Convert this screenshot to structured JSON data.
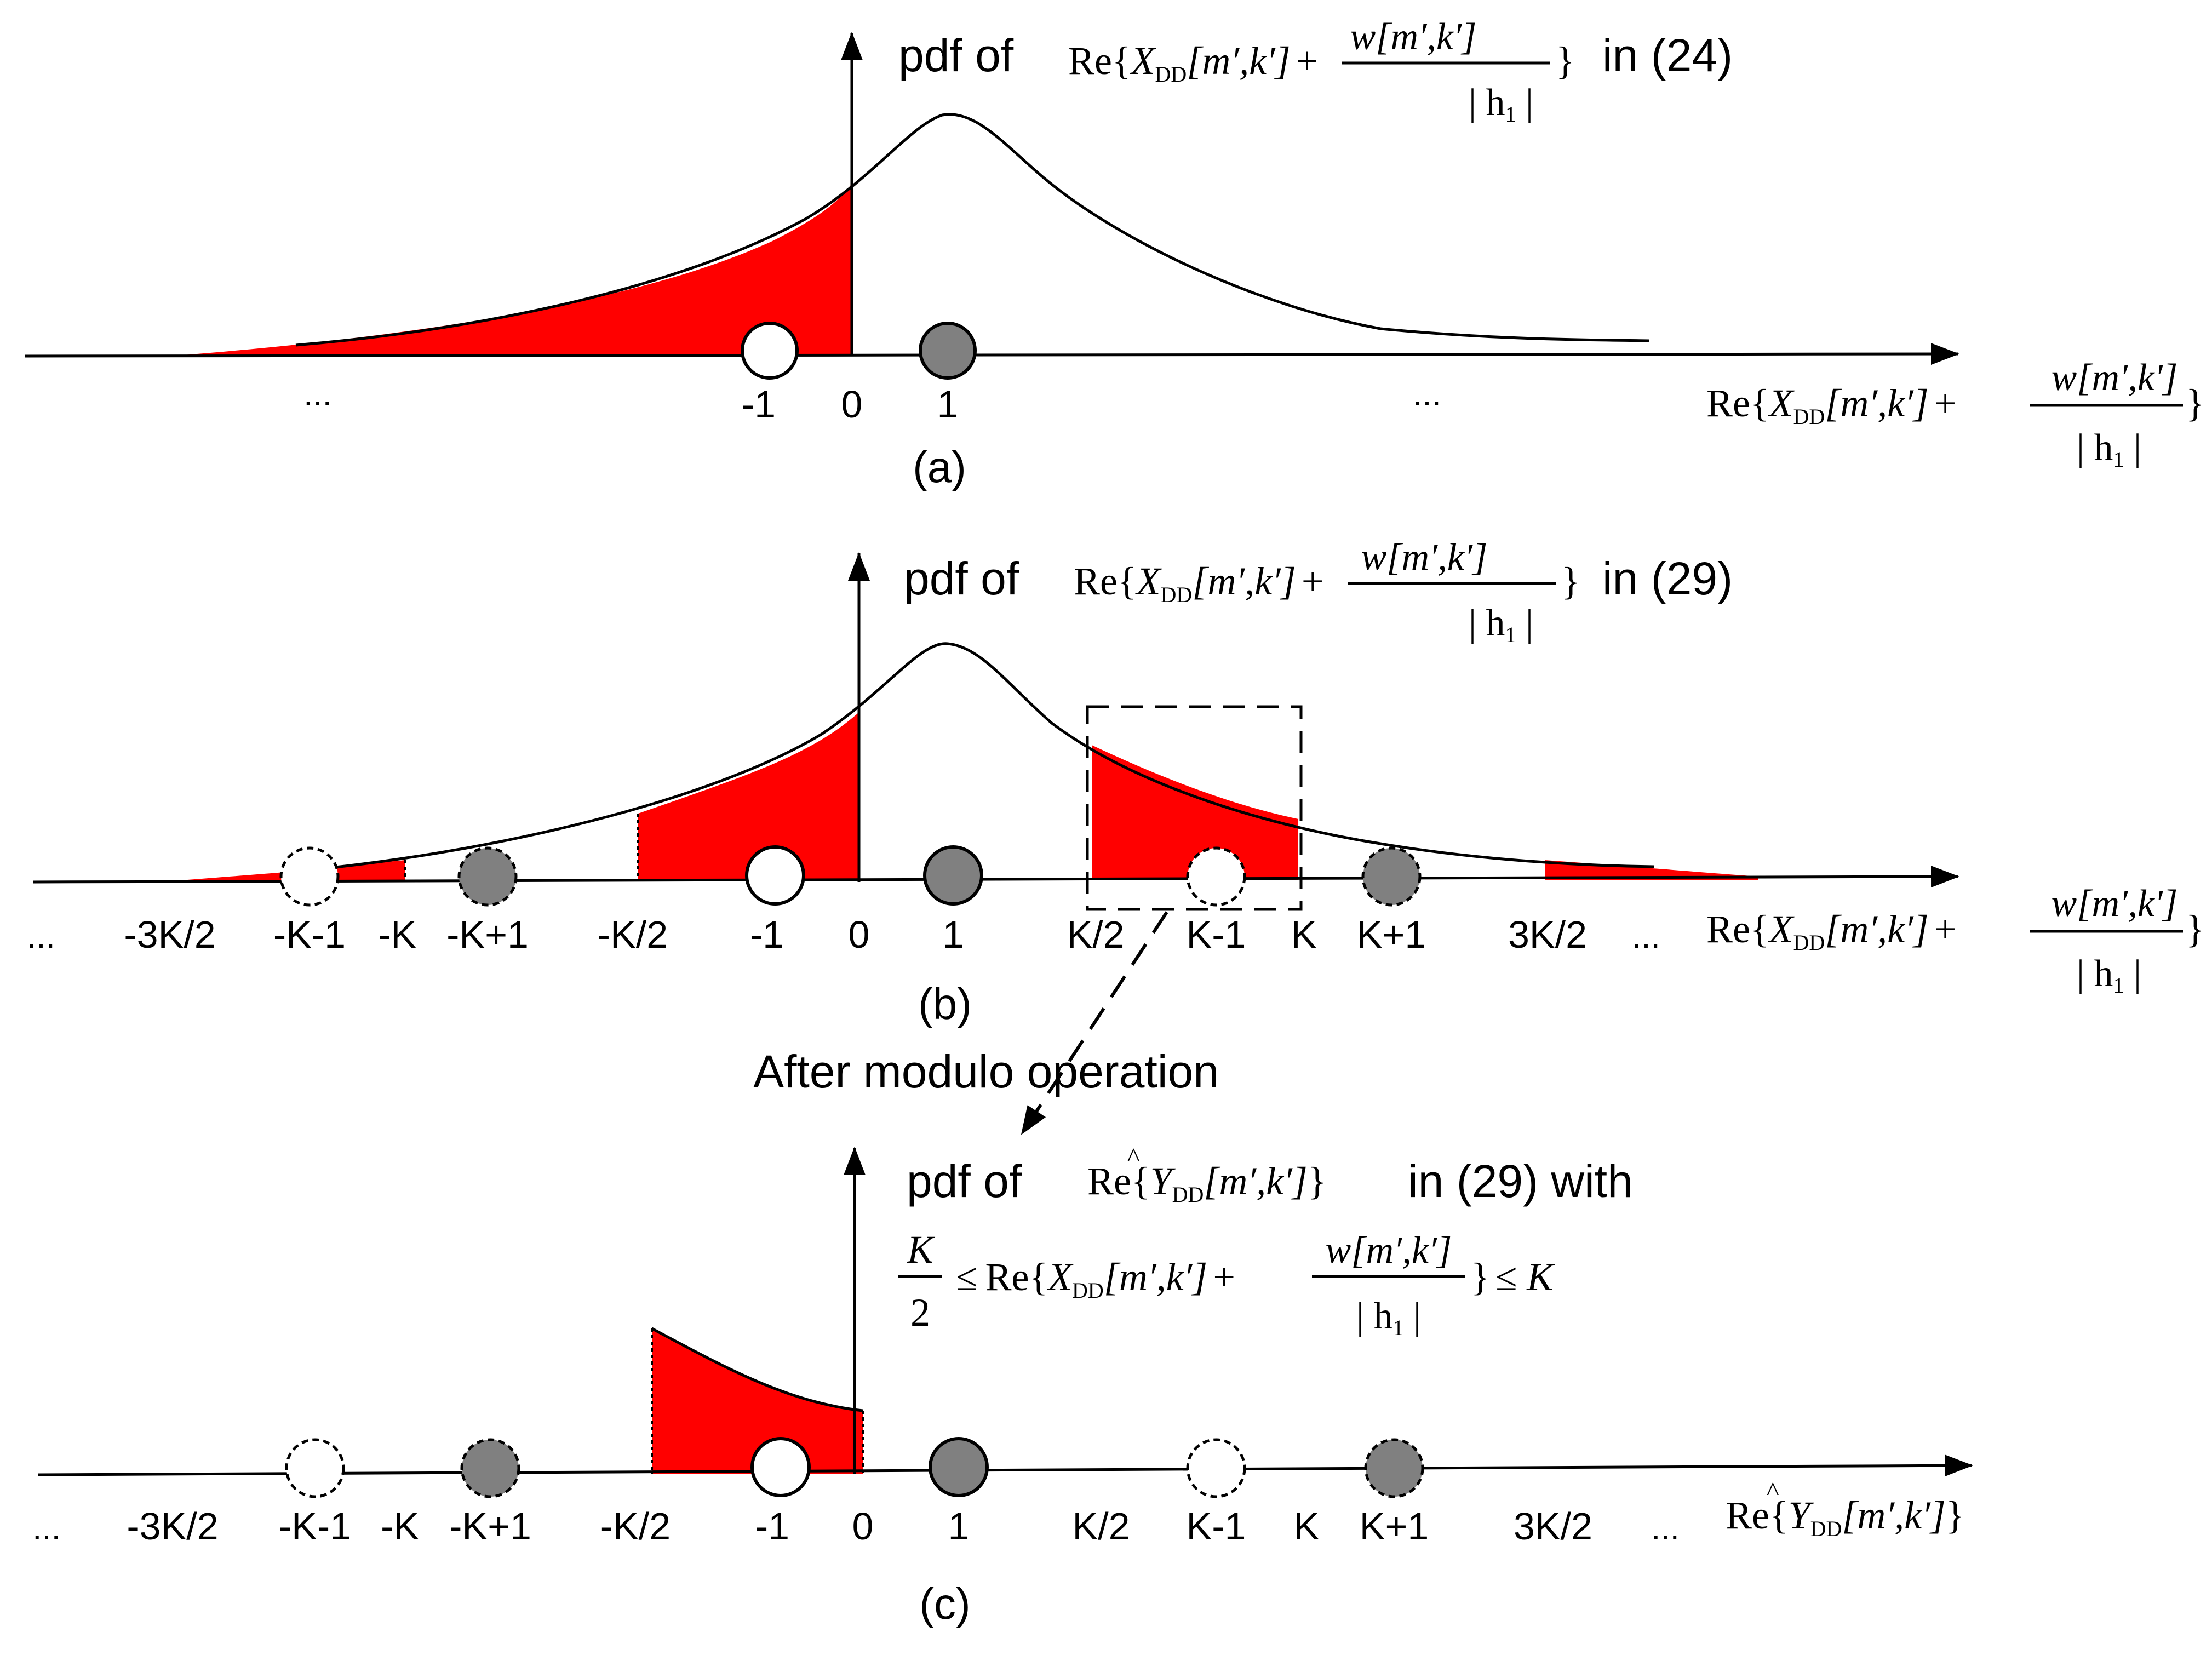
{
  "colors": {
    "shade": "#ff0000",
    "filled_circle": "#808080",
    "open_circle": "#ffffff",
    "ink": "#000000"
  },
  "panel_a": {
    "pdf_prefix": "pdf of",
    "equation_ref": "in (24)",
    "caption": "(a)",
    "tick_labels": [
      "...",
      "-1",
      "0",
      "1",
      "..."
    ]
  },
  "panel_b": {
    "pdf_prefix": "pdf of",
    "equation_ref": "in (29)",
    "caption": "(b)",
    "tick_labels": [
      "...",
      "-3K/2",
      "-K-1",
      "-K",
      "-K+1",
      "-K/2",
      "-1",
      "0",
      "1",
      "K/2",
      "K-1",
      "K",
      "K+1",
      "3K/2",
      "..."
    ]
  },
  "arrow_label": "After modulo operation",
  "panel_c": {
    "pdf_prefix": "pdf of",
    "equation_ref": "in (29) with",
    "caption": "(c)",
    "tick_labels": [
      "...",
      "-3K/2",
      "-K-1",
      "-K",
      "-K+1",
      "-K/2",
      "-1",
      "0",
      "1",
      "K/2",
      "K-1",
      "K",
      "K+1",
      "3K/2",
      "..."
    ]
  },
  "math": {
    "re": "Re",
    "x_dd": "X",
    "y_dd": "Y",
    "dd_sub": "DD",
    "args": "[m′,k′]",
    "plus": "+",
    "w_num": "w[m′,k′]",
    "h_denom": "| h",
    "h_sub": "1",
    "h_bar": " |",
    "k_over": "K",
    "two": "2",
    "leq": "≤",
    "k_upper": "≤ K"
  }
}
